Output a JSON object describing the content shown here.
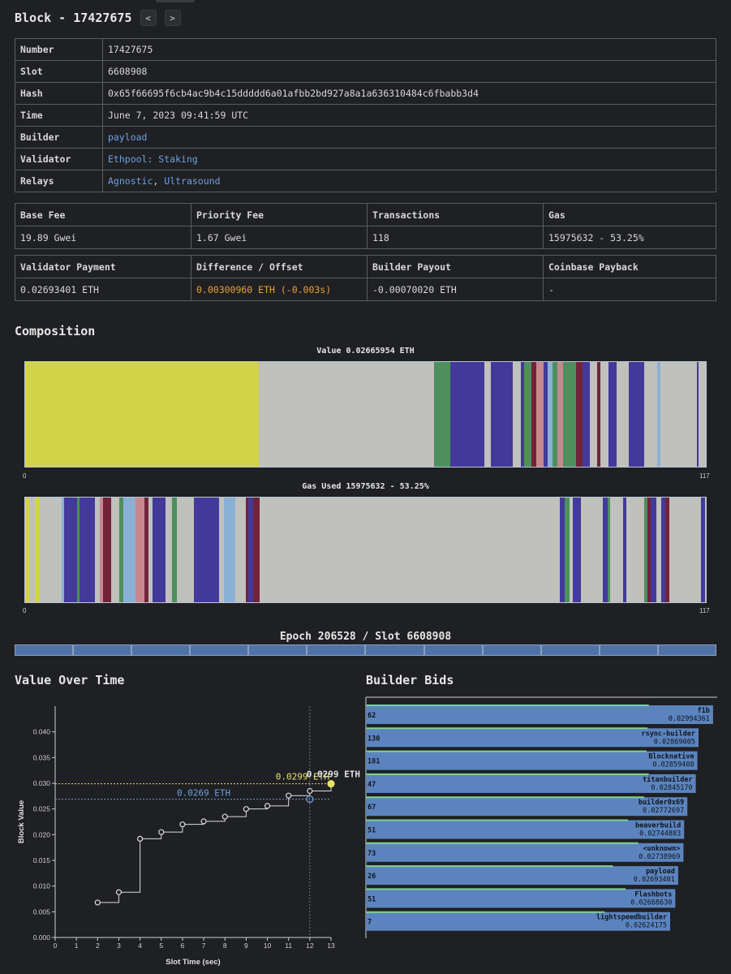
{
  "block": {
    "title": "Block - 17427675",
    "prev_label": "<",
    "next_label": ">"
  },
  "details": {
    "number": {
      "label": "Number",
      "value": "17427675"
    },
    "slot": {
      "label": "Slot",
      "value": "6608908"
    },
    "hash": {
      "label": "Hash",
      "value": "0x65f66695f6cb4ac9b4c15ddddd6a01afbb2bd927a8a1a636310484c6fbabb3d4"
    },
    "time": {
      "label": "Time",
      "value": "June 7, 2023 09:41:59 UTC"
    },
    "builder": {
      "label": "Builder",
      "value": "payload"
    },
    "validator": {
      "label": "Validator",
      "value": "Ethpool: Staking"
    },
    "relays": {
      "label": "Relays",
      "value_1": "Agnostic",
      "separator": ",",
      "value_2": "Ultrasound"
    }
  },
  "fees": {
    "headers": [
      "Base Fee",
      "Priority Fee",
      "Transactions",
      "Gas"
    ],
    "values": [
      "19.89 Gwei",
      "1.67 Gwei",
      "118",
      "15975632 - 53.25%"
    ]
  },
  "payments": {
    "headers": [
      "Validator Payment",
      "Difference / Offset",
      "Builder Payout",
      "Coinbase Payback"
    ],
    "values": [
      "0.02693401 ETH",
      "0.00300960 ETH (-0.003s)",
      "-0.00070020 ETH",
      "-"
    ]
  },
  "composition": {
    "title": "Composition",
    "value_label": "Value 0.02665954 ETH",
    "gas_label": "Gas Used 15975632 - 53.25%",
    "axis_start": "0",
    "axis_end": "117",
    "colors": {
      "gray": "#c0c0bc",
      "yellow": "#d2d447",
      "purple": "#43399a",
      "green": "#4e8f5d",
      "maroon": "#72233a",
      "lightblue": "#8ab0d6",
      "pink": "#c7878f"
    }
  },
  "epoch": {
    "label": "Epoch 206528 / Slot 6608908",
    "segments": 12
  },
  "value_over_time": {
    "title": "Value Over Time",
    "chart_data": {
      "type": "line",
      "xlabel": "Slot Time (sec)",
      "ylabel": "Block Value",
      "xlim": [
        0,
        13
      ],
      "ylim": [
        0,
        0.045
      ],
      "x_ticks": [
        "0",
        "1",
        "2",
        "3",
        "4",
        "5",
        "6",
        "7",
        "8",
        "9",
        "10",
        "11",
        "12",
        "13"
      ],
      "y_ticks": [
        "0.000",
        "0.005",
        "0.010",
        "0.015",
        "0.020",
        "0.025",
        "0.030",
        "0.035",
        "0.040"
      ],
      "x": [
        2,
        3,
        4,
        5,
        6,
        7,
        8,
        9,
        10,
        11,
        12,
        13
      ],
      "y": [
        0.0068,
        0.0088,
        0.0192,
        0.0205,
        0.022,
        0.0226,
        0.0235,
        0.025,
        0.0256,
        0.0276,
        0.0285,
        0.0299
      ],
      "highlight_max": {
        "x": 13,
        "y": 0.0299,
        "label": "0.0299 ETH"
      },
      "highlight_payload": {
        "x": 12,
        "y": 0.0269,
        "label": "0.0269 ETH"
      },
      "vline_x": 12
    }
  },
  "builder_bids": {
    "title": "Builder Bids",
    "chart_data": {
      "type": "bar",
      "orientation": "horizontal",
      "categories": [
        "f1b",
        "rsync-builder",
        "Blocknative",
        "titanbuilder",
        "builder0x69",
        "beaverbuild",
        "<unknown>",
        "payload",
        "Flashbots",
        "lightspeedbuilder"
      ],
      "counts": [
        "62",
        "130",
        "181",
        "47",
        "67",
        "51",
        "73",
        "26",
        "51",
        "7"
      ],
      "value_labels": [
        "0.02994361",
        "0.02869005",
        "0.02859408",
        "0.02845170",
        "0.02772697",
        "0.02744883",
        "0.02738969",
        "0.02693401",
        "0.02668630",
        "0.02624175"
      ],
      "values": [
        0.02994361,
        0.02869005,
        0.02859408,
        0.0284517,
        0.02772697,
        0.02744883,
        0.02738969,
        0.02693401,
        0.0266863,
        0.02624175
      ],
      "secondary_values": [
        0.0244,
        0.0243,
        0.0242,
        0.0244,
        0.024,
        0.0226,
        0.0235,
        0.0213,
        0.0224,
        0.0206
      ],
      "xlim": [
        0,
        0.0303
      ]
    }
  }
}
